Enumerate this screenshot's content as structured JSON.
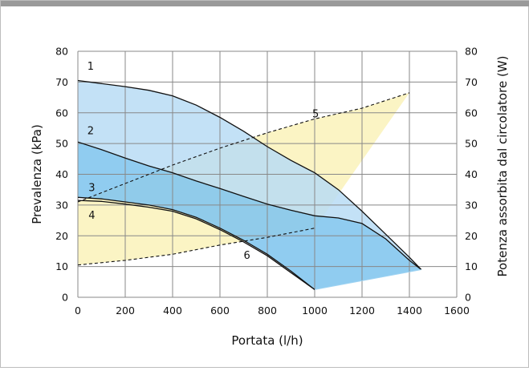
{
  "chart_data": {
    "type": "line",
    "title": "",
    "xlabel": "Portata (l/h)",
    "ylabel": "Prevalenza (kPa)",
    "y2label": "Potenza assorbita dal circolatore (W)",
    "xlim": [
      0,
      1600
    ],
    "ylim": [
      0,
      80
    ],
    "y2lim": [
      0,
      80
    ],
    "x_ticks": [
      "0",
      "200",
      "400",
      "600",
      "800",
      "1000",
      "1200",
      "1400",
      "1600"
    ],
    "y_ticks": [
      "0",
      "10",
      "20",
      "30",
      "40",
      "50",
      "60",
      "70",
      "80"
    ],
    "y2_ticks": [
      "0",
      "10",
      "20",
      "30",
      "40",
      "50",
      "60",
      "70",
      "80"
    ],
    "grid": true,
    "colors": {
      "head_fill_light": "#b9dcf5",
      "head_fill_dark": "#84c7ee",
      "power_fill": "#fbf4c4",
      "grid": "#888888",
      "line": "#111111"
    },
    "series": [
      {
        "label": "1",
        "axis": "left",
        "style": "solid",
        "points": [
          [
            0,
            70.5
          ],
          [
            100,
            69.5
          ],
          [
            200,
            68.5
          ],
          [
            300,
            67.3
          ],
          [
            400,
            65.5
          ],
          [
            500,
            62.5
          ],
          [
            600,
            58.5
          ],
          [
            700,
            54
          ],
          [
            800,
            49
          ],
          [
            900,
            44.5
          ],
          [
            1000,
            40.5
          ],
          [
            1100,
            35
          ],
          [
            1200,
            28
          ],
          [
            1300,
            20.5
          ],
          [
            1400,
            13
          ],
          [
            1450,
            9
          ]
        ]
      },
      {
        "label": "2",
        "axis": "left",
        "style": "solid",
        "points": [
          [
            0,
            50.5
          ],
          [
            100,
            48
          ],
          [
            200,
            45.3
          ],
          [
            300,
            42.7
          ],
          [
            400,
            40.5
          ],
          [
            500,
            37.8
          ],
          [
            600,
            35.4
          ],
          [
            700,
            32.8
          ],
          [
            800,
            30.3
          ],
          [
            900,
            28.3
          ],
          [
            1000,
            26.5
          ],
          [
            1100,
            25.8
          ],
          [
            1200,
            24
          ],
          [
            1300,
            19
          ],
          [
            1400,
            12
          ],
          [
            1450,
            9
          ]
        ]
      },
      {
        "label": "3",
        "axis": "left",
        "style": "solid",
        "points": [
          [
            0,
            32.5
          ],
          [
            100,
            32
          ],
          [
            200,
            31
          ],
          [
            300,
            30
          ],
          [
            400,
            28.5
          ],
          [
            500,
            26
          ],
          [
            600,
            22.5
          ],
          [
            700,
            18.5
          ],
          [
            800,
            14
          ],
          [
            900,
            8.5
          ],
          [
            1000,
            2.5
          ]
        ]
      },
      {
        "label": "4",
        "axis": "left",
        "style": "solid",
        "points": [
          [
            0,
            31.5
          ],
          [
            100,
            31.2
          ],
          [
            200,
            30.3
          ],
          [
            300,
            29.3
          ],
          [
            400,
            28
          ],
          [
            500,
            25.5
          ],
          [
            600,
            22
          ],
          [
            700,
            18
          ],
          [
            800,
            13.5
          ],
          [
            900,
            8
          ],
          [
            1000,
            2.5
          ]
        ]
      },
      {
        "label": "5",
        "axis": "right",
        "style": "dashed",
        "points": [
          [
            0,
            31
          ],
          [
            200,
            37
          ],
          [
            400,
            43
          ],
          [
            600,
            48.5
          ],
          [
            800,
            53.5
          ],
          [
            1000,
            58
          ],
          [
            1200,
            61.5
          ],
          [
            1400,
            66.5
          ]
        ]
      },
      {
        "label": "6",
        "axis": "right",
        "style": "dashed",
        "points": [
          [
            0,
            10.5
          ],
          [
            200,
            12
          ],
          [
            400,
            14
          ],
          [
            600,
            17
          ],
          [
            800,
            19.5
          ],
          [
            1000,
            22.5
          ]
        ]
      }
    ]
  }
}
